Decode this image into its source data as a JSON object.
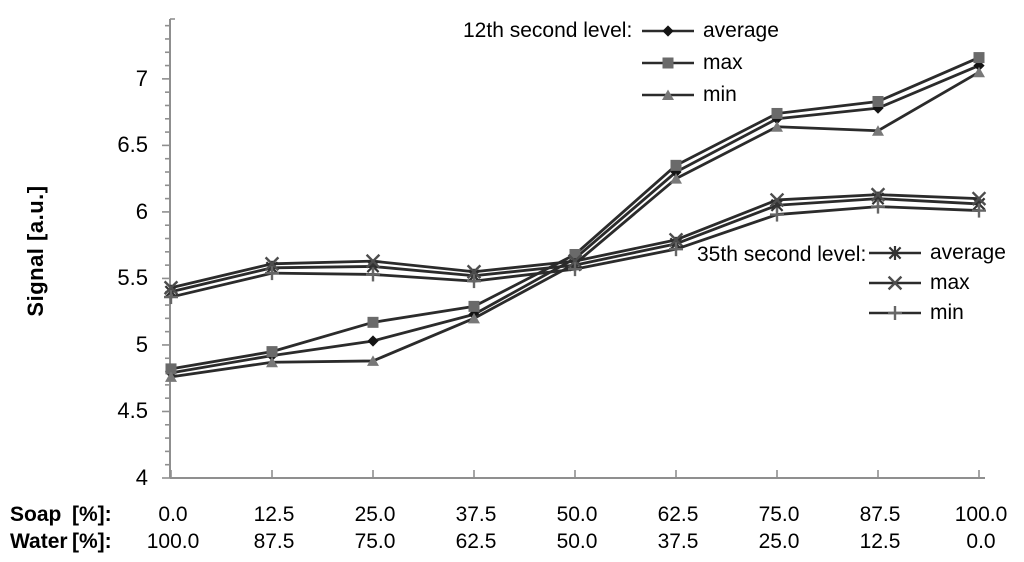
{
  "chart_data": {
    "type": "line",
    "title": "",
    "ylabel": "Signal [a.u.]",
    "ylim": [
      4,
      7.45
    ],
    "y_major_ticks": [
      {
        "value": 7,
        "label": "7"
      },
      {
        "value": 6.5,
        "label": "6.5"
      },
      {
        "value": 6,
        "label": "6"
      },
      {
        "value": 5.5,
        "label": "5.5"
      },
      {
        "value": 5,
        "label": "5"
      },
      {
        "value": 4.5,
        "label": "4.5"
      },
      {
        "value": 4,
        "label": "4"
      }
    ],
    "y_minor_step": 0.1,
    "grid": false,
    "legend_position": "inside-top-right and inside-middle-right",
    "x_axis": {
      "soap_label": "Soap",
      "soap_unit": "[%]:",
      "soap_values": [
        "0.0",
        "12.5",
        "25.0",
        "37.5",
        "50.0",
        "62.5",
        "75.0",
        "87.5",
        "100.0"
      ],
      "water_label": "Water",
      "water_unit": "[%]:",
      "water_values": [
        "100.0",
        "87.5",
        "75.0",
        "62.5",
        "50.0",
        "37.5",
        "25.0",
        "12.5",
        "0.0"
      ]
    },
    "categories_soap_pct": [
      0,
      12.5,
      25,
      37.5,
      50,
      62.5,
      75,
      87.5,
      100
    ],
    "legends": [
      {
        "title": "12th second level:",
        "items": [
          {
            "label": "average",
            "marker": "diamond"
          },
          {
            "label": "max",
            "marker": "square"
          },
          {
            "label": "min",
            "marker": "triangle"
          }
        ]
      },
      {
        "title": "35th second level:",
        "items": [
          {
            "label": "average",
            "marker": "asterisk"
          },
          {
            "label": "max",
            "marker": "x"
          },
          {
            "label": "min",
            "marker": "plus"
          }
        ]
      }
    ],
    "series": [
      {
        "group": "12th second level",
        "name": "average",
        "marker": "diamond",
        "values": [
          4.79,
          4.92,
          5.03,
          5.23,
          5.65,
          6.3,
          6.7,
          6.78,
          7.1
        ]
      },
      {
        "group": "12th second level",
        "name": "max",
        "marker": "square",
        "values": [
          4.82,
          4.95,
          5.17,
          5.29,
          5.68,
          6.35,
          6.74,
          6.83,
          7.16
        ]
      },
      {
        "group": "12th second level",
        "name": "min",
        "marker": "triangle",
        "values": [
          4.76,
          4.87,
          4.88,
          5.2,
          5.61,
          6.25,
          6.64,
          6.61,
          7.05
        ]
      },
      {
        "group": "35th second level",
        "name": "average",
        "marker": "asterisk",
        "values": [
          5.4,
          5.58,
          5.59,
          5.52,
          5.6,
          5.76,
          6.05,
          6.1,
          6.06
        ]
      },
      {
        "group": "35th second level",
        "name": "max",
        "marker": "x",
        "values": [
          5.43,
          5.61,
          5.63,
          5.55,
          5.63,
          5.79,
          6.09,
          6.13,
          6.1
        ]
      },
      {
        "group": "35th second level",
        "name": "min",
        "marker": "plus",
        "values": [
          5.36,
          5.54,
          5.53,
          5.48,
          5.57,
          5.72,
          5.98,
          6.04,
          6.01
        ]
      }
    ],
    "colors": {
      "background": "#ffffff",
      "line": "#2b2b2b",
      "axis": "#8f8f8f",
      "text": "#000000",
      "marker_diamond": "#141414",
      "marker_square": "#6a6a6a",
      "marker_triangle": "#787878",
      "marker_asterisk": "#333333",
      "marker_x": "#4d4d4d",
      "marker_plus": "#666666"
    }
  }
}
